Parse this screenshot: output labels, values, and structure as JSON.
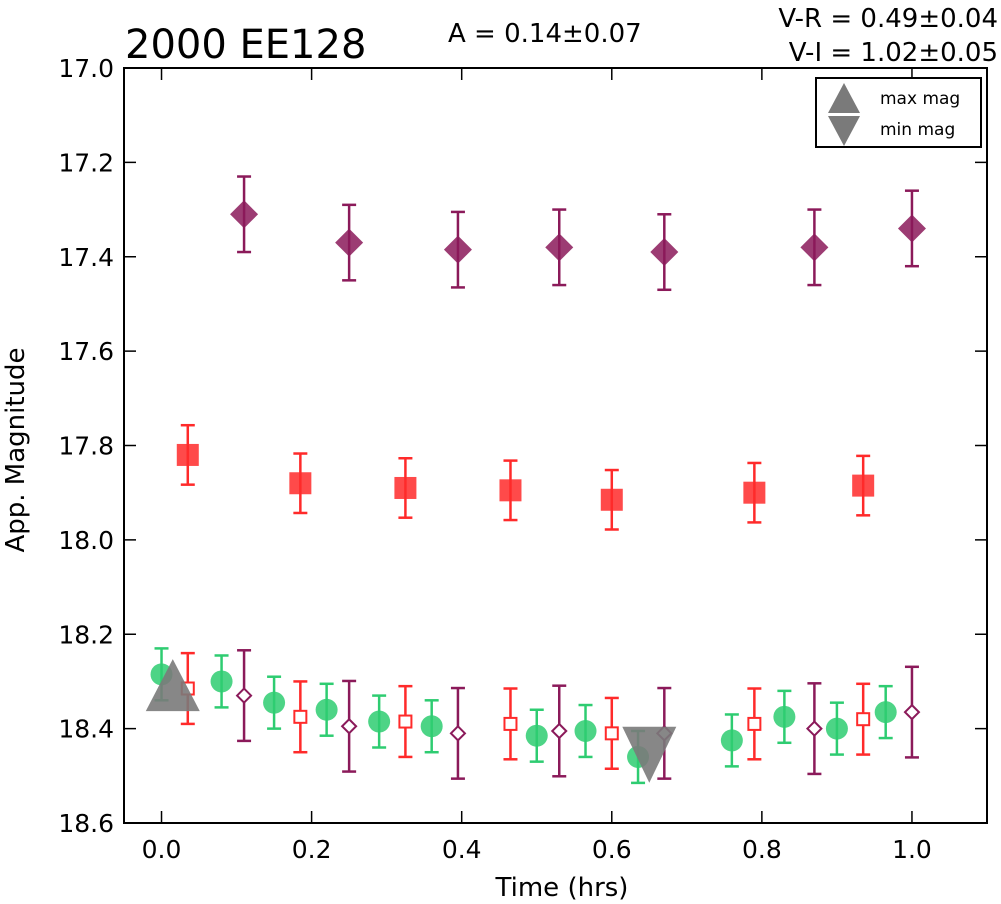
{
  "chart_data": {
    "type": "scatter",
    "title": "2000 EE128",
    "annotations": {
      "amplitude": "A  = 0.14±0.07",
      "v_r": "V-R = 0.49±0.04",
      "v_i": "V-I  = 1.02±0.05"
    },
    "xlabel": "Time (hrs)",
    "ylabel": "App. Magnitude",
    "xlim": [
      -0.05,
      1.1
    ],
    "ylim": [
      18.6,
      17.0
    ],
    "y_inverted": true,
    "grid": false,
    "xticks": [
      "0.0",
      "0.2",
      "0.4",
      "0.6",
      "0.8",
      "1.0"
    ],
    "yticks": [
      "17.0",
      "17.2",
      "17.4",
      "17.6",
      "17.8",
      "18.0",
      "18.2",
      "18.4",
      "18.6"
    ],
    "legend": {
      "placement": "top-right",
      "entries": [
        "max mag",
        "min mag"
      ]
    },
    "series": [
      {
        "marker": "diamond-filled",
        "color": "#8b1a5a",
        "err": 0.08,
        "x": [
          0.11,
          0.25,
          0.395,
          0.53,
          0.67,
          0.87,
          1.0
        ],
        "y": [
          17.31,
          17.37,
          17.385,
          17.38,
          17.39,
          17.38,
          17.34
        ]
      },
      {
        "marker": "square-filled",
        "color": "#ff2a2a",
        "err": 0.063,
        "x": [
          0.035,
          0.185,
          0.325,
          0.465,
          0.6,
          0.79,
          0.935
        ],
        "y": [
          17.82,
          17.88,
          17.89,
          17.895,
          17.915,
          17.9,
          17.885
        ]
      },
      {
        "marker": "circle-filled",
        "color": "#2ecc71",
        "err": 0.055,
        "x": [
          0.0,
          0.08,
          0.15,
          0.22,
          0.29,
          0.36,
          0.5,
          0.565,
          0.635,
          0.76,
          0.83,
          0.9,
          0.965
        ],
        "y": [
          18.285,
          18.3,
          18.345,
          18.36,
          18.385,
          18.395,
          18.415,
          18.405,
          18.46,
          18.425,
          18.375,
          18.4,
          18.365
        ]
      },
      {
        "marker": "square-open",
        "color": "#ff2a2a",
        "err": 0.075,
        "x": [
          0.035,
          0.185,
          0.325,
          0.465,
          0.6,
          0.79,
          0.935
        ],
        "y": [
          18.315,
          18.375,
          18.385,
          18.39,
          18.41,
          18.39,
          18.38
        ]
      },
      {
        "marker": "diamond-open",
        "color": "#8b1a5a",
        "err": 0.096,
        "x": [
          0.11,
          0.25,
          0.395,
          0.53,
          0.67,
          0.87,
          1.0
        ],
        "y": [
          18.33,
          18.395,
          18.41,
          18.405,
          18.41,
          18.4,
          18.365
        ]
      }
    ],
    "extrema": [
      {
        "type": "max",
        "x": 0.015,
        "y": 18.31,
        "color": "#7a7a7a"
      },
      {
        "type": "min",
        "x": 0.65,
        "y": 18.43,
        "color": "#7a7a7a"
      }
    ]
  }
}
